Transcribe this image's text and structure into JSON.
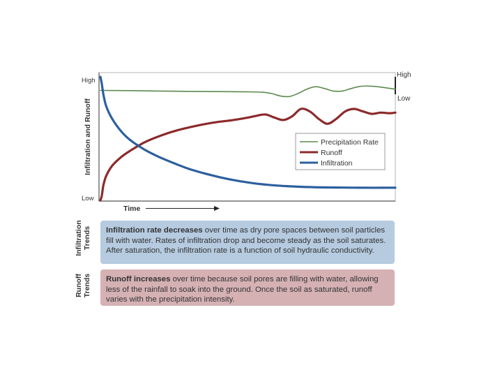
{
  "chart_data": {
    "type": "line",
    "ylabel": "Infiltration and Runoff",
    "y_tick_labels": [
      "High",
      "Low"
    ],
    "xlabel": "Time",
    "right_axis_tick_labels": [
      "High",
      "Low"
    ],
    "legend_placement": "center-right",
    "ylim": [
      0,
      100
    ],
    "xlim": [
      0,
      100
    ],
    "series": [
      {
        "name": "Precipitation Rate",
        "color": "#5c8a4f",
        "x": [
          0,
          10,
          20,
          30,
          40,
          50,
          55,
          58,
          61,
          64,
          67,
          70,
          73,
          76,
          79,
          82,
          85,
          88,
          91,
          94,
          97,
          100
        ],
        "values": [
          89,
          88.8,
          88.5,
          88.2,
          88,
          87.8,
          87.5,
          86.5,
          84.5,
          84,
          86.5,
          90,
          92,
          90.5,
          88.5,
          88.5,
          90.5,
          92.2,
          92.5,
          92,
          91,
          90
        ]
      },
      {
        "name": "Runoff",
        "color": "#8c2a2b",
        "x": [
          0,
          0.5,
          1,
          2,
          4,
          7,
          10,
          15,
          20,
          25,
          30,
          35,
          40,
          45,
          50,
          53,
          56,
          59,
          62,
          65,
          68,
          71,
          74,
          77,
          80,
          83,
          86,
          89,
          92,
          95,
          98,
          100
        ],
        "values": [
          0,
          4,
          12,
          20,
          28,
          35,
          40,
          47,
          52,
          56,
          59,
          61.5,
          63.5,
          65,
          67,
          68.5,
          69.5,
          67,
          65,
          68,
          74,
          72,
          66,
          62,
          66,
          72,
          74,
          72,
          70,
          71,
          70.5,
          71
        ]
      },
      {
        "name": "Infiltration",
        "color": "#2c5f9e",
        "x": [
          0,
          0.5,
          1,
          2,
          4,
          7,
          10,
          15,
          20,
          25,
          30,
          35,
          40,
          45,
          50,
          55,
          60,
          65,
          70,
          75,
          80,
          85,
          90,
          95,
          100
        ],
        "values": [
          100,
          94,
          86,
          76,
          66,
          56,
          49,
          41,
          35,
          30,
          25.5,
          22,
          19,
          16.5,
          14.5,
          13,
          12,
          11.3,
          10.8,
          10.5,
          10.4,
          10.3,
          10.2,
          10.2,
          10.2
        ]
      }
    ]
  },
  "trends": {
    "infiltration_label": "Infiltration Trends",
    "infiltration_bold": "Infiltration rate decreases",
    "infiltration_text": " over time as dry pore spaces between soil particles fill with water.  Rates of infiltration drop and become steady as the soil saturates. After saturation, the infiltration rate is a function of soil hydraulic conductivity.",
    "runoff_label": "Runoff Trends",
    "runoff_bold": "Runoff increases",
    "runoff_text": " over time because soil pores are filling with water, allowing less of the rainfall to soak into the ground.  Once the soil as saturated, runoff varies with the precipitation intensity."
  }
}
